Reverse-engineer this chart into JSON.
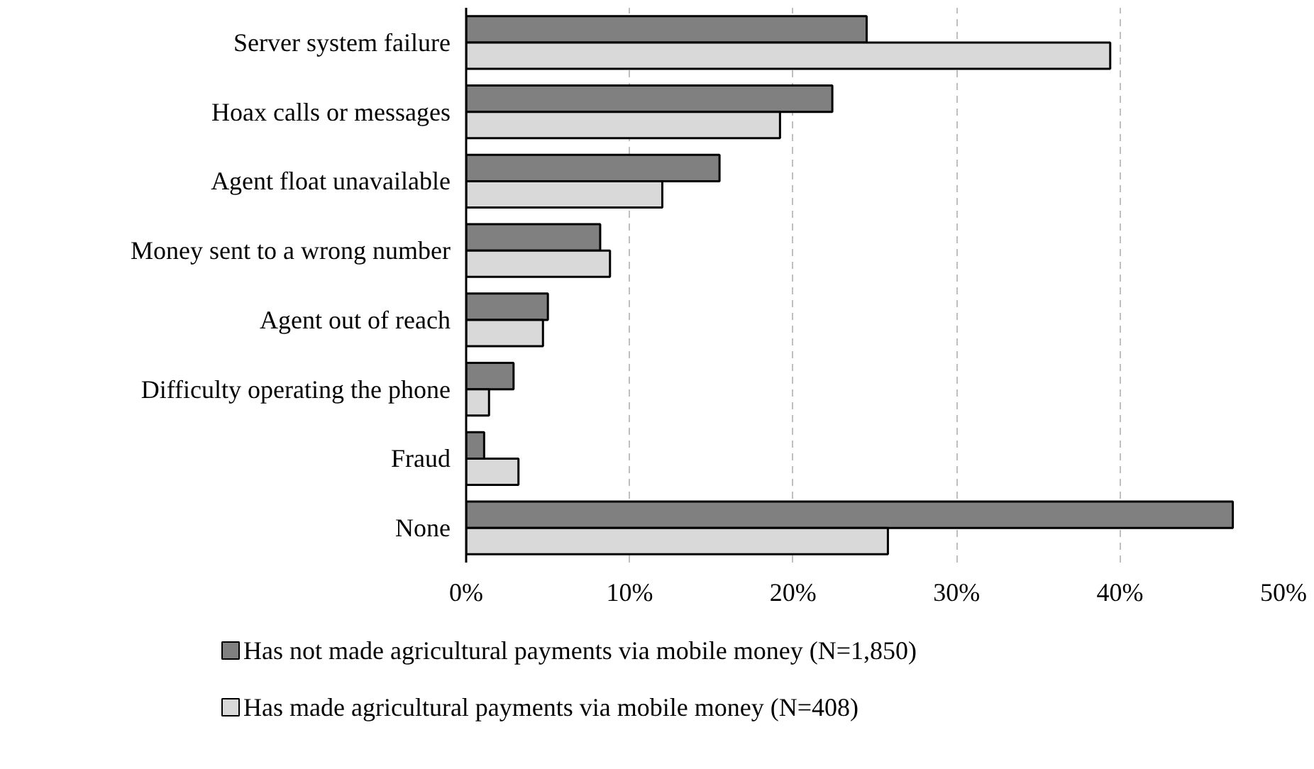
{
  "chart_data": {
    "type": "bar",
    "orientation": "horizontal",
    "categories": [
      "Server system failure",
      "Hoax calls or messages",
      "Agent float unavailable",
      "Money sent to a wrong number",
      "Agent out of reach",
      "Difficulty operating the phone",
      "Fraud",
      "None"
    ],
    "series": [
      {
        "name": "Has not made agricultural payments via mobile money (N=1,850)",
        "color": "#808080",
        "values": [
          24.5,
          22.4,
          15.5,
          8.2,
          5.0,
          2.9,
          1.1,
          46.9
        ]
      },
      {
        "name": "Has made agricultural payments via mobile money (N=408)",
        "color": "#d9d9d9",
        "values": [
          39.4,
          19.2,
          12.0,
          8.8,
          4.7,
          1.4,
          3.2,
          25.8
        ]
      }
    ],
    "xlim": [
      0,
      50
    ],
    "xticks": [
      {
        "value": 0,
        "label": "0%"
      },
      {
        "value": 10,
        "label": "10%"
      },
      {
        "value": 20,
        "label": "20%"
      },
      {
        "value": 30,
        "label": "30%"
      },
      {
        "value": 40,
        "label": "40%"
      },
      {
        "value": 50,
        "label": "50%"
      }
    ],
    "grid": "x",
    "legend": "bottom"
  }
}
